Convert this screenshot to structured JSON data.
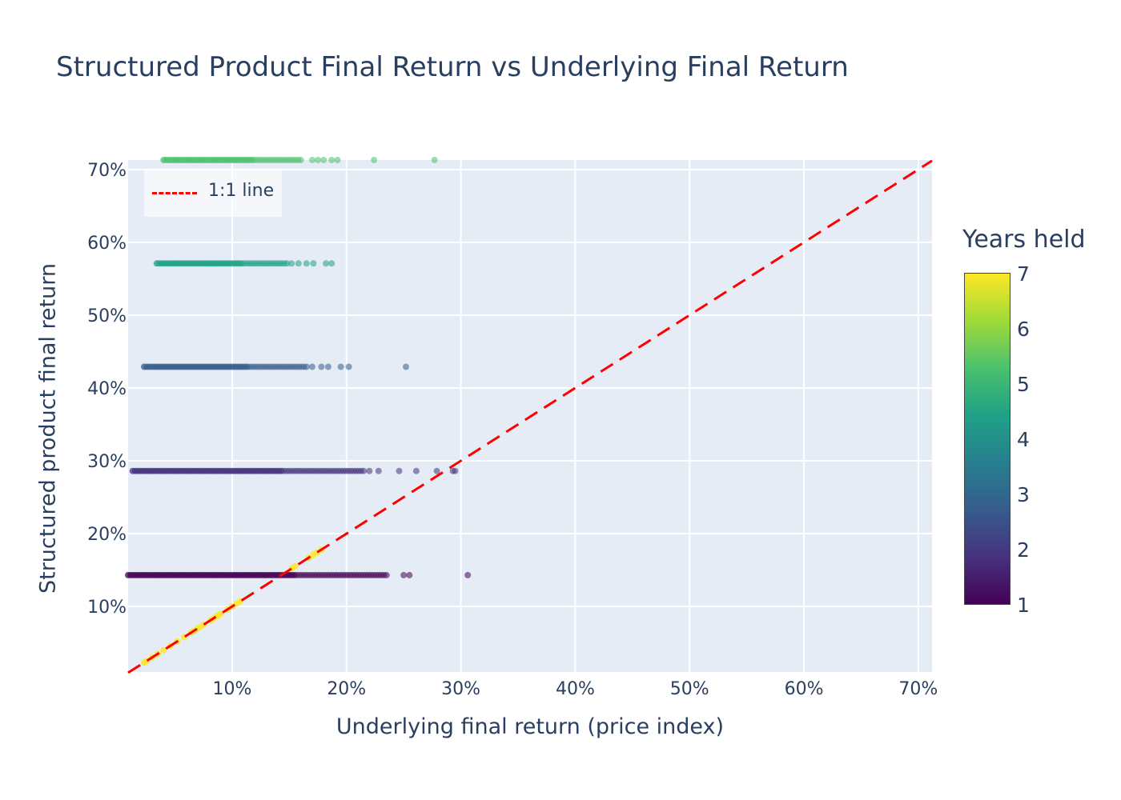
{
  "chart_data": {
    "type": "scatter",
    "title": "Structured Product Final Return vs Underlying Final Return",
    "xlabel": "Underlying final return (price index)",
    "ylabel": "Structured product final return",
    "xlim": [
      0.009,
      0.712
    ],
    "ylim": [
      0.01,
      0.713
    ],
    "x_ticks": [
      0.1,
      0.2,
      0.3,
      0.4,
      0.5,
      0.6,
      0.7
    ],
    "x_tick_labels": [
      "10%",
      "20%",
      "30%",
      "40%",
      "50%",
      "60%",
      "70%"
    ],
    "y_ticks": [
      0.1,
      0.2,
      0.3,
      0.4,
      0.5,
      0.6,
      0.7
    ],
    "y_tick_labels": [
      "10%",
      "20%",
      "30%",
      "40%",
      "50%",
      "60%",
      "70%"
    ],
    "grid": true,
    "background_color": "#e5ecf6",
    "legend": {
      "position": "top-left",
      "entries": [
        {
          "name": "1:1 line",
          "style": "dashed",
          "color": "#ff0000"
        }
      ]
    },
    "reference_line": {
      "name": "1:1 line",
      "x": [
        0.009,
        0.712
      ],
      "y": [
        0.009,
        0.712
      ],
      "color": "#ff0000",
      "dash": "dashed"
    },
    "colorscale": {
      "title": "Years held",
      "name": "viridis",
      "min": 1,
      "max": 7,
      "ticks": [
        "1",
        "2",
        "3",
        "4",
        "5",
        "6",
        "7"
      ]
    },
    "bands": [
      {
        "years": 1,
        "y": 0.143,
        "x_min": 0.009,
        "x_max": 0.235,
        "outliers": [
          0.25,
          0.255,
          0.306
        ]
      },
      {
        "years": 2,
        "y": 0.286,
        "x_min": 0.013,
        "x_max": 0.215,
        "outliers": [
          0.22,
          0.228,
          0.246,
          0.261,
          0.279,
          0.293,
          0.295
        ]
      },
      {
        "years": 3,
        "y": 0.429,
        "x_min": 0.023,
        "x_max": 0.165,
        "outliers": [
          0.17,
          0.178,
          0.184,
          0.195,
          0.202,
          0.252
        ]
      },
      {
        "years": 4,
        "y": 0.571,
        "x_min": 0.034,
        "x_max": 0.148,
        "outliers": [
          0.152,
          0.158,
          0.165,
          0.171,
          0.182,
          0.187
        ]
      },
      {
        "years": 5,
        "y": 0.714,
        "x_min": 0.04,
        "x_max": 0.16,
        "outliers": [
          0.17,
          0.175,
          0.18,
          0.187,
          0.192,
          0.224,
          0.277
        ]
      }
    ],
    "diagonal_points": {
      "years": 7,
      "x": [
        0.023,
        0.025,
        0.03,
        0.035,
        0.04,
        0.046,
        0.052,
        0.058,
        0.064,
        0.066,
        0.069,
        0.072,
        0.075,
        0.081,
        0.084,
        0.086,
        0.088,
        0.09,
        0.096,
        0.1,
        0.104,
        0.107,
        0.152,
        0.155,
        0.167,
        0.171,
        0.174,
        0.178
      ]
    }
  }
}
